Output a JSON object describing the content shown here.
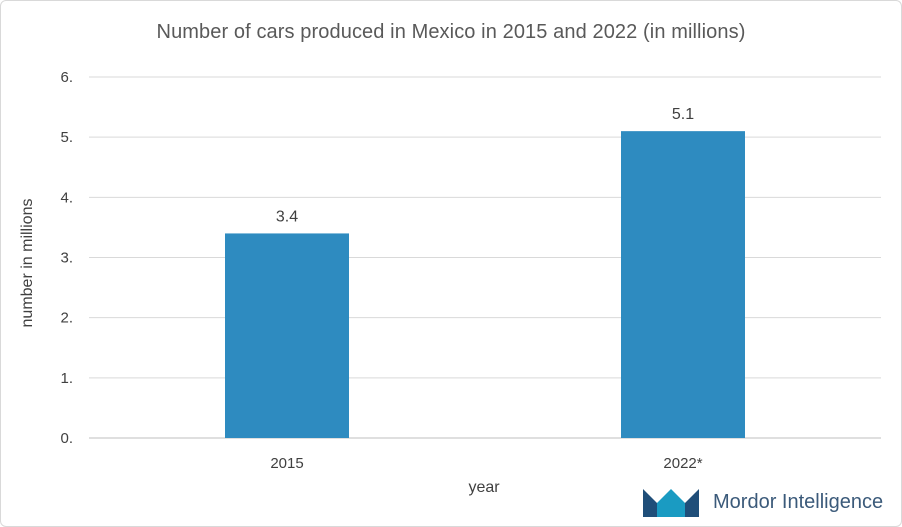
{
  "chart_data": {
    "type": "bar",
    "title": "Number of cars produced in Mexico in 2015 and 2022 (in millions)",
    "xlabel": "year",
    "ylabel": "number in millions",
    "categories": [
      "2015",
      "2022*"
    ],
    "values": [
      3.4,
      5.1
    ],
    "data_labels": [
      "3.4",
      "5.1"
    ],
    "ylim": [
      0,
      6
    ],
    "yticks": [
      0,
      1,
      2,
      3,
      4,
      5,
      6
    ],
    "ytick_labels": [
      "0.",
      "1.",
      "2.",
      "3.",
      "4.",
      "5.",
      "6."
    ],
    "grid": true,
    "legend": "none",
    "bar_color": "#2e8bc0"
  },
  "branding": {
    "logo_text": "Mordor Intelligence",
    "logo_colors": [
      "#1a9bc2",
      "#1f4e79"
    ]
  }
}
